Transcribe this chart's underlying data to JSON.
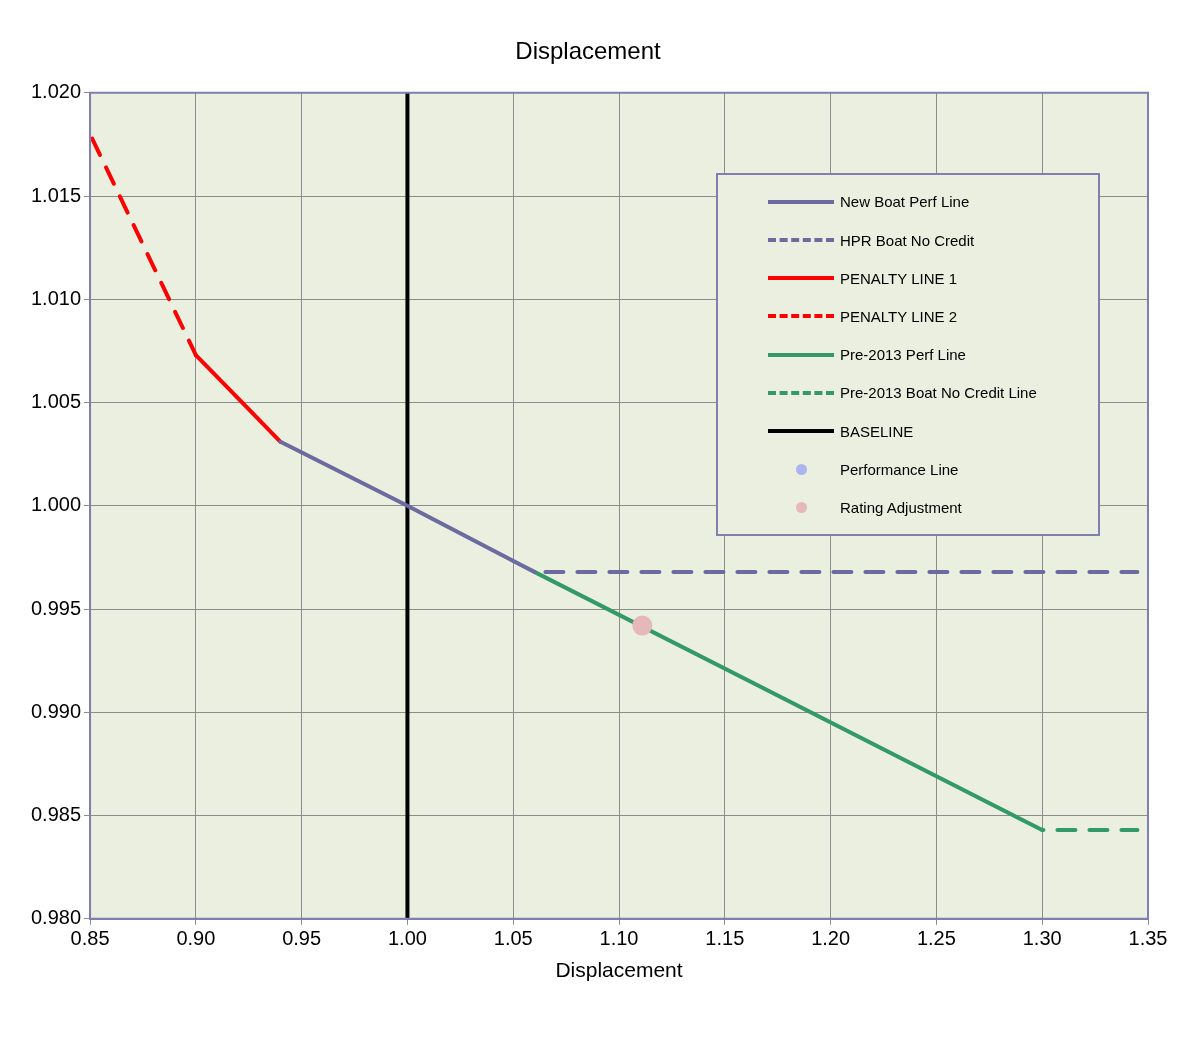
{
  "chart_data": {
    "type": "line",
    "title": "Displacement",
    "xlabel": "Displacement",
    "xlim": [
      0.85,
      1.35
    ],
    "xticks": [
      0.85,
      {
        "value": 0.9,
        "label": "0.90"
      },
      0.95,
      {
        "value": 1,
        "label": "1.00"
      },
      1.05,
      {
        "value": 1.1,
        "label": "1.10"
      },
      1.15,
      {
        "value": 1.2,
        "label": "1.20"
      },
      1.25,
      {
        "value": 1.3,
        "label": "1.30"
      },
      1.35
    ],
    "ylim": [
      0.98,
      1.02
    ],
    "yticks": [
      {
        "value": 0.98,
        "label": "0.980"
      },
      0.985,
      {
        "value": 0.99,
        "label": "0.990"
      },
      0.995,
      {
        "value": 1,
        "label": "1.000"
      },
      1.005,
      {
        "value": 1.01,
        "label": "1.010"
      },
      1.015,
      {
        "value": 1.02,
        "label": "1.020"
      }
    ],
    "grid": true,
    "legend": "top right",
    "marker": "none",
    "series": [
      {
        "name": "New Boat Perf Line",
        "color": "#6b6b9f",
        "line_style": "solid",
        "x": [
          0.94,
          1,
          1.06
        ],
        "values": [
          1.0031,
          1,
          0.9968
        ]
      },
      {
        "name": "HPR Boat No Credit",
        "color": "#6b6b9f",
        "line_style": "dashed",
        "x": [
          1.06,
          1.345
        ],
        "values": [
          0.9968,
          0.9968
        ]
      },
      {
        "name": "PENALTY LINE 1",
        "color": "#ff0000",
        "line_style": "solid",
        "x": [
          0.9,
          0.94
        ],
        "values": [
          1.0073,
          1.0031
        ]
      },
      {
        "name": "PENALTY LINE 2",
        "color": "#ff0000",
        "line_style": "dashed",
        "x": [
          0.85,
          0.9
        ],
        "values": [
          1.018,
          1.0073
        ]
      },
      {
        "name": "Pre-2013 Perf Line",
        "color": "#339966",
        "line_style": "solid",
        "x": [
          1.06,
          1.3
        ],
        "values": [
          0.9968,
          0.9843
        ]
      },
      {
        "name": "Pre-2013 Boat No Credit Line",
        "color": "#339966",
        "line_style": "dashed",
        "x": [
          1.3,
          1.345
        ],
        "values": [
          0.9843,
          0.9843
        ]
      },
      {
        "name": "BASELINE",
        "color": "#000000",
        "line_style": "solid",
        "x": [
          1,
          1
        ],
        "values": [
          0.98,
          1.02
        ]
      },
      {
        "name": "Performance Line",
        "type": "scatter",
        "color": "#aab4f0",
        "marker": "circle"
      },
      {
        "name": "Rating Adjustment",
        "type": "scatter",
        "color": "#e6b8b8",
        "marker": "circle",
        "x": [
          1.111
        ],
        "values": [
          0.9942
        ]
      }
    ]
  }
}
